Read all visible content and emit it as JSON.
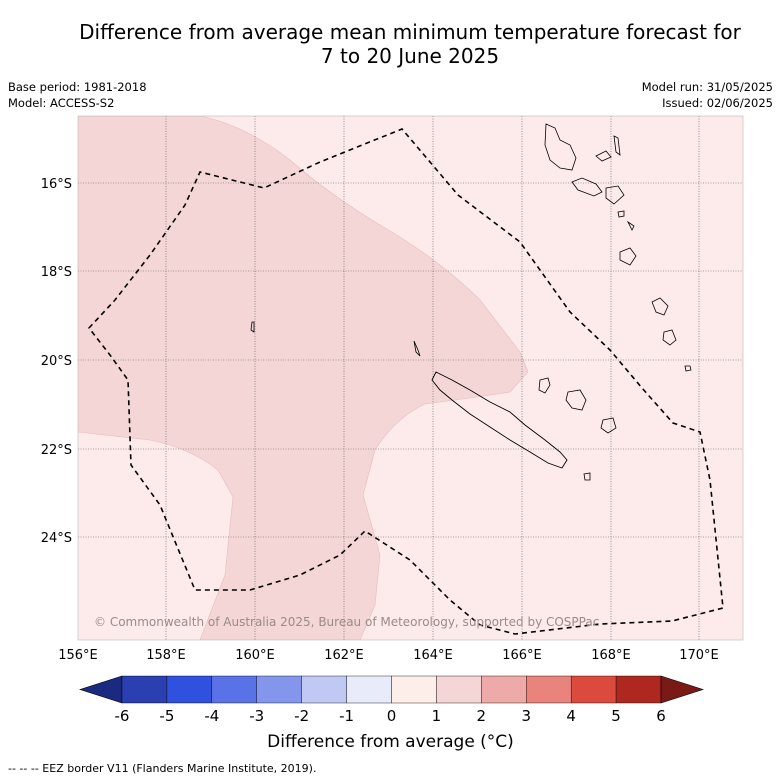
{
  "title_line1": "Difference from average mean minimum temperature forecast for",
  "title_line2": "7 to 20 June 2025",
  "meta_left": [
    "Base period: 1981-2018",
    "Model: ACCESS-S2"
  ],
  "meta_right": [
    "Model run: 31/05/2025",
    "Issued: 02/06/2025"
  ],
  "map": {
    "region": "New Caledonia EEZ",
    "lon_ticks": [
      "156°E",
      "158°E",
      "160°E",
      "162°E",
      "164°E",
      "166°E",
      "168°E",
      "170°E"
    ],
    "lat_ticks": [
      "16°S",
      "18°S",
      "20°S",
      "22°S",
      "24°S"
    ],
    "copyright": "© Commonwealth of Australia 2025, Bureau of Meteorology, supported by COSPPac",
    "colors": {
      "band_0_1": "#fcebea",
      "band_1_2": "#f5d6d6",
      "land_outline": "#000000",
      "eez_border": "#000000"
    }
  },
  "colorbar": {
    "ticks": [
      "-6",
      "-5",
      "-4",
      "-3",
      "-2",
      "-1",
      "0",
      "1",
      "2",
      "3",
      "4",
      "5",
      "6"
    ],
    "colors": [
      "#1a2a80",
      "#2a3fb0",
      "#3050e0",
      "#5a72e8",
      "#8496ec",
      "#c0c8f4",
      "#e8ecfa",
      "#fdeeea",
      "#f5d6d6",
      "#eeaaa8",
      "#e8847c",
      "#dc4a3e",
      "#ae2820",
      "#7a1a16"
    ],
    "label": "Difference from average ($^\\circ$C)",
    "label_display": "Difference from average (°C)"
  },
  "footer": "--  --  -- EEZ border V11 (Flanders Marine Institute, 2019)."
}
